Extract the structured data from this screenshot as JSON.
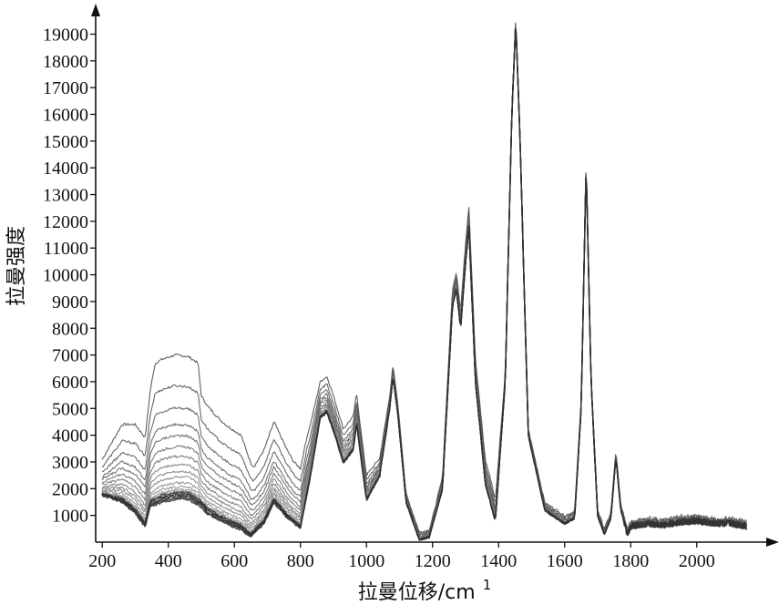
{
  "chart_data": {
    "type": "line",
    "title": "",
    "xlabel": "拉曼位移/cm",
    "xlabel_superscript": "1",
    "ylabel": "拉曼强度",
    "xlim": [
      180,
      2180
    ],
    "ylim": [
      0,
      19800
    ],
    "x_ticks": [
      200,
      400,
      600,
      800,
      1000,
      1200,
      1400,
      1600,
      1800,
      2000
    ],
    "y_ticks": [
      1000,
      2000,
      3000,
      4000,
      5000,
      6000,
      7000,
      8000,
      9000,
      10000,
      11000,
      12000,
      13000,
      14000,
      15000,
      16000,
      17000,
      18000,
      19000
    ],
    "grid": false,
    "legend": "none",
    "line_color": "#333333",
    "reference_series": {
      "x": [
        200,
        260,
        300,
        330,
        345,
        380,
        420,
        460,
        490,
        520,
        580,
        620,
        650,
        690,
        720,
        760,
        800,
        830,
        860,
        880,
        900,
        930,
        960,
        970,
        985,
        1000,
        1040,
        1070,
        1080,
        1095,
        1120,
        1160,
        1190,
        1230,
        1260,
        1272,
        1285,
        1300,
        1310,
        1330,
        1360,
        1390,
        1420,
        1440,
        1452,
        1465,
        1490,
        1540,
        1600,
        1630,
        1650,
        1665,
        1680,
        1700,
        1720,
        1740,
        1755,
        1770,
        1790,
        1800,
        1850,
        1900,
        1950,
        2000,
        2050,
        2100,
        2150
      ],
      "y": [
        1800,
        1600,
        1200,
        700,
        1500,
        1700,
        1800,
        1800,
        1600,
        1200,
        800,
        600,
        300,
        800,
        1600,
        1000,
        600,
        2500,
        4700,
        4900,
        4200,
        3000,
        3500,
        4500,
        3000,
        1600,
        2500,
        5000,
        6200,
        4800,
        1500,
        100,
        200,
        2000,
        8800,
        9500,
        8000,
        10500,
        11800,
        6000,
        2200,
        800,
        6000,
        16000,
        19500,
        15000,
        4000,
        1200,
        700,
        900,
        5000,
        14200,
        6000,
        1000,
        300,
        900,
        3200,
        1200,
        300,
        600,
        700,
        650,
        750,
        800,
        700,
        700,
        600
      ]
    },
    "spread": {
      "x": [
        200,
        260,
        300,
        330,
        360,
        420,
        490,
        500,
        560,
        620,
        660,
        720,
        780,
        820,
        860,
        880,
        960,
        980,
        1000,
        1060,
        1080,
        1120,
        1200,
        1260,
        1300,
        1320,
        1380,
        1420,
        1440,
        1470,
        1520,
        1580,
        1640,
        1700,
        1760,
        1820,
        2150
      ],
      "y": [
        1300,
        2800,
        3200,
        3200,
        5100,
        5200,
        5100,
        4000,
        3600,
        3400,
        2400,
        2900,
        2200,
        2100,
        1300,
        1300,
        1200,
        1000,
        900,
        500,
        400,
        300,
        250,
        600,
        700,
        800,
        900,
        300,
        200,
        200,
        250,
        300,
        250,
        200,
        200,
        150,
        150
      ]
    },
    "series_offsets": [
      1.0,
      0.78,
      0.62,
      0.5,
      0.42,
      0.34,
      0.27,
      0.21,
      0.16,
      0.12,
      0.08,
      0.05,
      0.03,
      0.02,
      0.01,
      0.0,
      -0.01,
      -0.02,
      -0.03,
      -0.04
    ]
  }
}
